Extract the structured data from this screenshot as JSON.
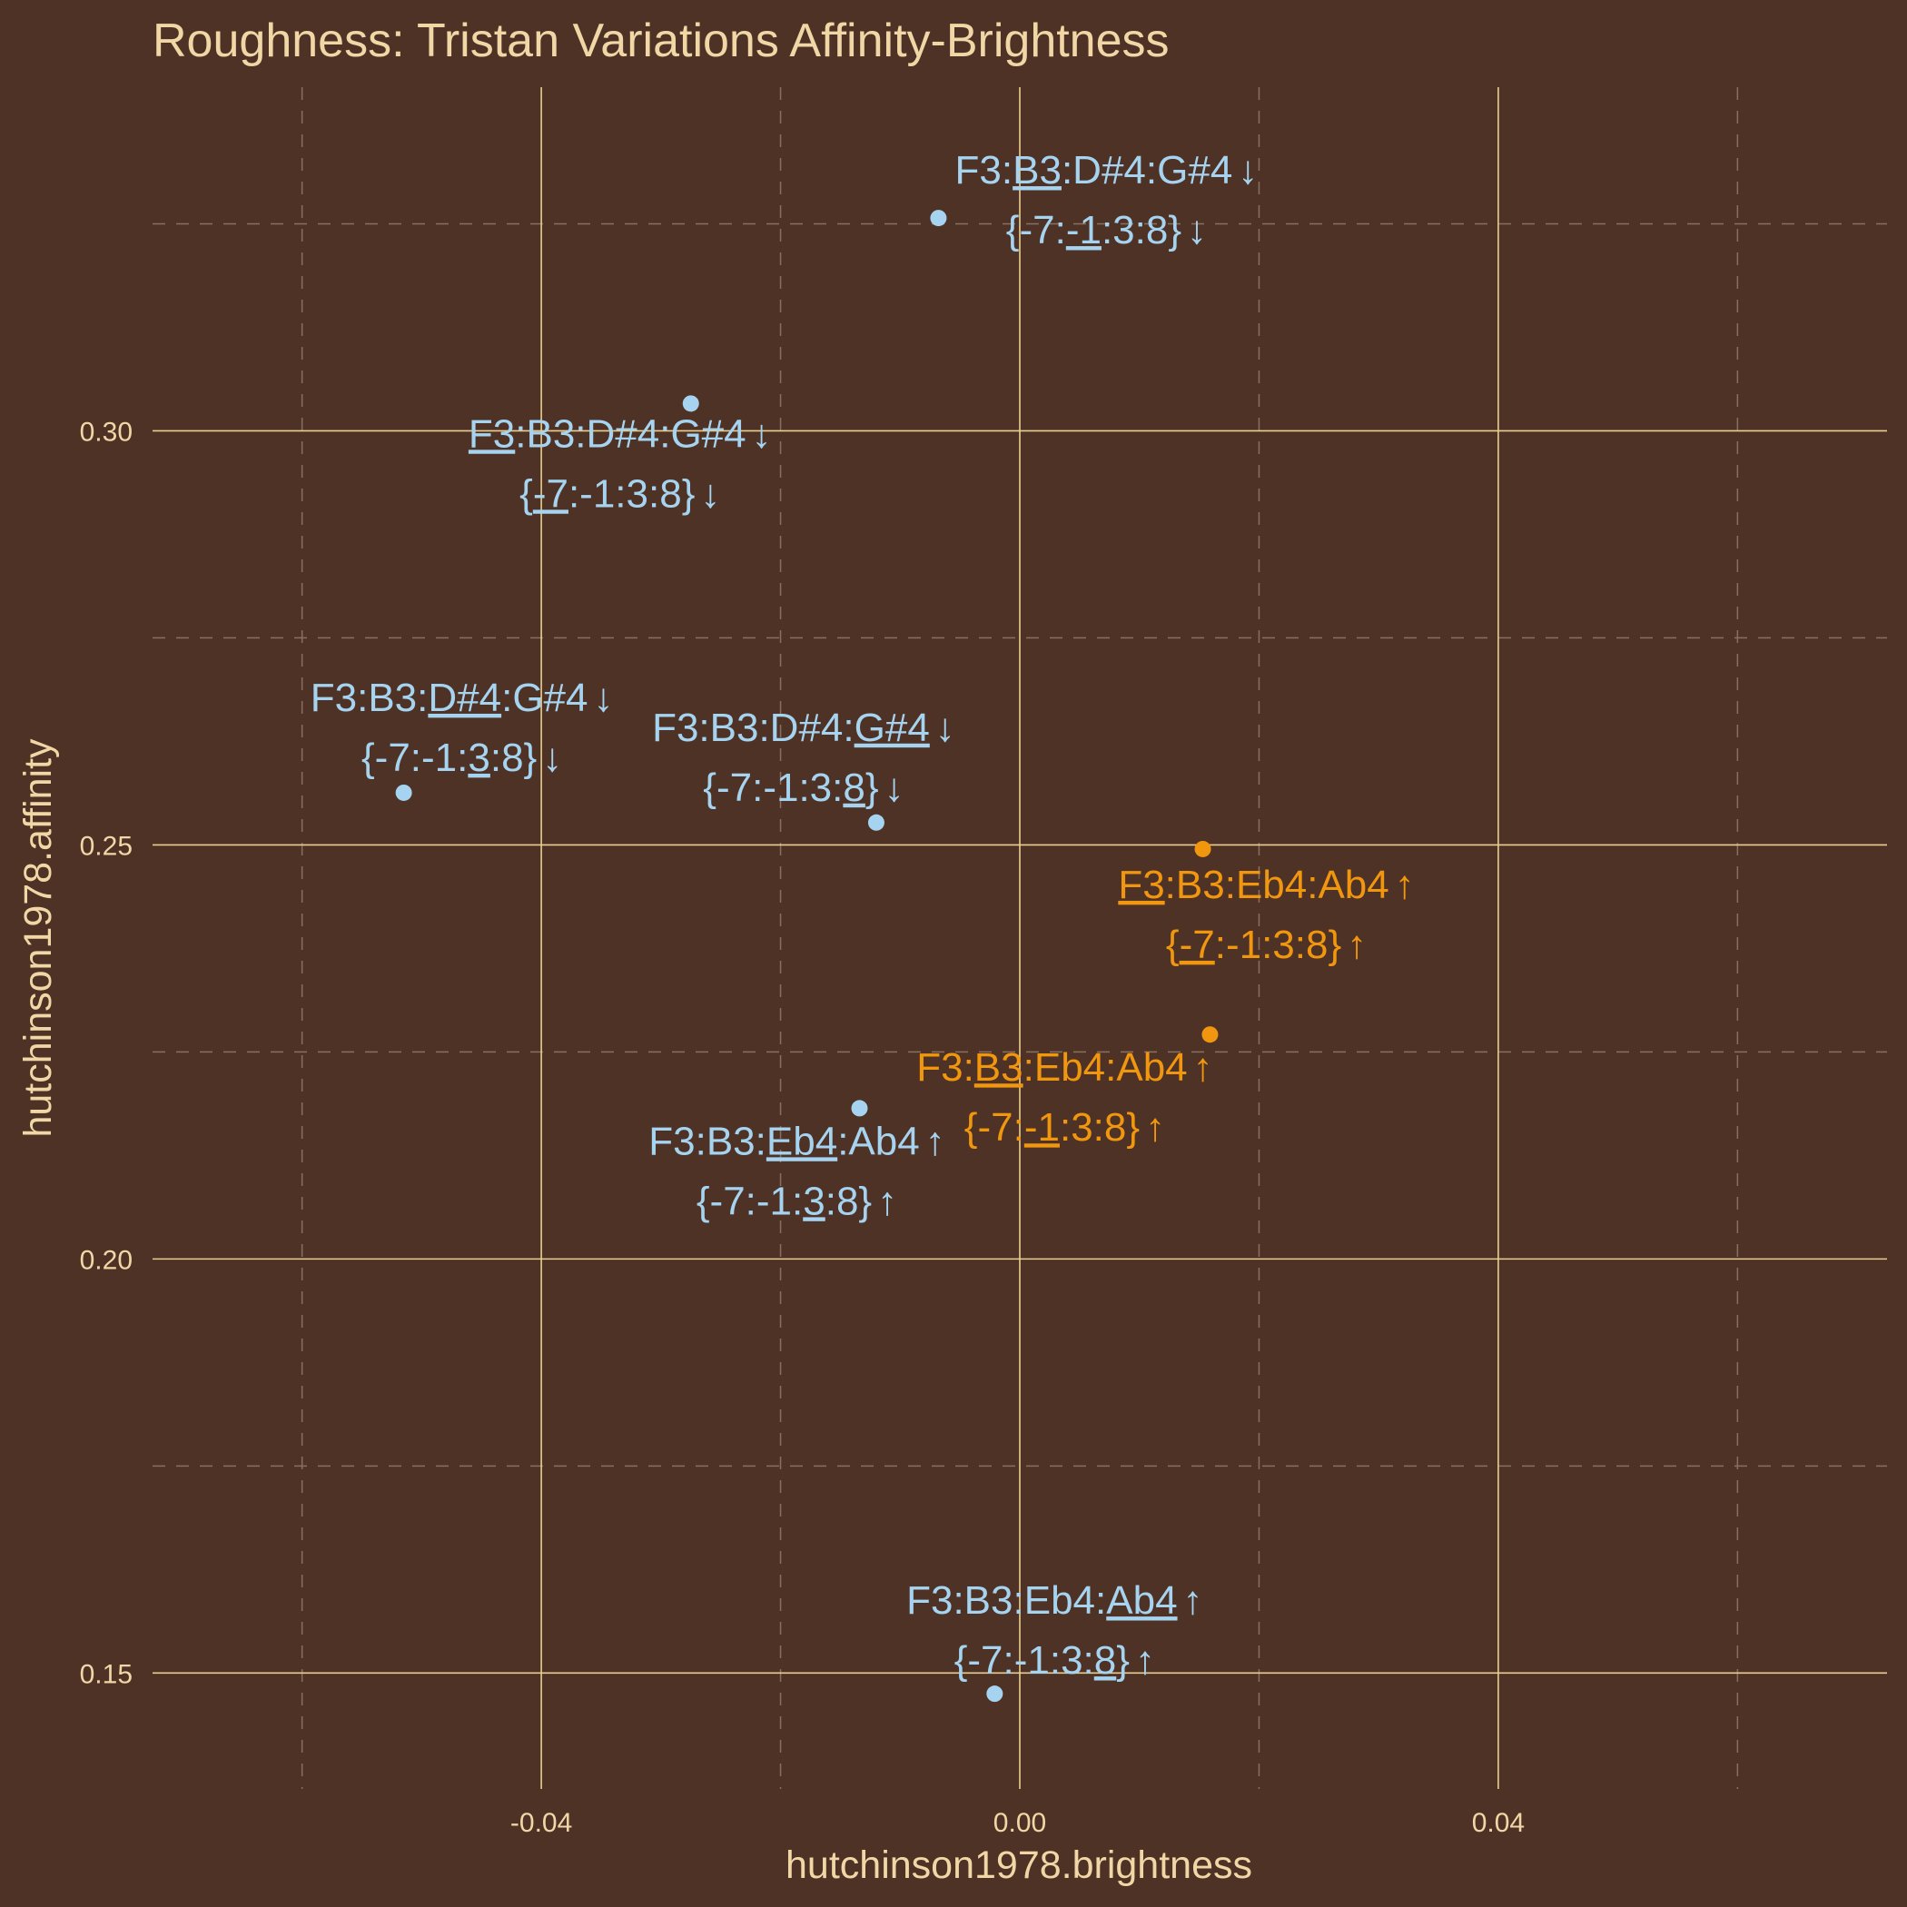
{
  "chart_data": {
    "type": "scatter",
    "title": "Roughness: Tristan Variations Affinity-Brightness",
    "xlabel": "hutchinson1978.brightness",
    "ylabel": "hutchinson1978.affinity",
    "xlim": [
      -0.0725,
      0.0725
    ],
    "ylim": [
      0.136,
      0.3415
    ],
    "x_major_ticks": [
      -0.04,
      0.0,
      0.04
    ],
    "x_tick_labels": [
      "-0.04",
      "0.00",
      "0.04"
    ],
    "x_minor_ticks": [
      -0.06,
      -0.02,
      0.02,
      0.06
    ],
    "y_major_ticks": [
      0.15,
      0.2,
      0.25,
      0.3
    ],
    "y_tick_labels": [
      "0.15",
      "0.20",
      "0.25",
      "0.30"
    ],
    "y_minor_ticks": [
      0.175,
      0.225,
      0.275,
      0.325
    ],
    "grid": true,
    "colors": {
      "background": "#4f3226",
      "down": "#a6d4f0",
      "up": "#f0960f",
      "text": "#f1d7a6"
    },
    "points": [
      {
        "x": -0.0068,
        "y": 0.3257,
        "color": "down",
        "label1": [
          [
            "F3:",
            false
          ],
          [
            "B3",
            true
          ],
          [
            ":D#4:G#4",
            false
          ]
        ],
        "arrow": "↓",
        "label2": [
          [
            "{-7:",
            false
          ],
          [
            "-1",
            true
          ],
          [
            ":3:8}",
            false
          ]
        ]
      },
      {
        "x": -0.0275,
        "y": 0.3033,
        "color": "down",
        "label1": [
          [
            "F3",
            true
          ],
          [
            ":B3:D#4:G#4",
            false
          ]
        ],
        "arrow": "↓",
        "label2": [
          [
            "{",
            false
          ],
          [
            "-7",
            true
          ],
          [
            ":-1:3:8}",
            false
          ]
        ]
      },
      {
        "x": -0.0515,
        "y": 0.2563,
        "color": "down",
        "label1": [
          [
            "F3:B3:",
            false
          ],
          [
            "D#4",
            true
          ],
          [
            ":G#4",
            false
          ]
        ],
        "arrow": "↓",
        "label2": [
          [
            "{-7:-1:",
            false
          ],
          [
            "3",
            true
          ],
          [
            ":8}",
            false
          ]
        ]
      },
      {
        "x": -0.012,
        "y": 0.2527,
        "color": "down",
        "label1": [
          [
            "F3:B3:D#4:",
            false
          ],
          [
            "G#4",
            true
          ]
        ],
        "arrow": "↓",
        "label2": [
          [
            "{-7:-1:3:",
            false
          ],
          [
            "8",
            true
          ],
          [
            "}",
            false
          ]
        ]
      },
      {
        "x": 0.0153,
        "y": 0.2495,
        "color": "up",
        "label1": [
          [
            "F3",
            true
          ],
          [
            ":B3:Eb4:Ab4",
            false
          ]
        ],
        "arrow": "↑",
        "label2": [
          [
            "{",
            false
          ],
          [
            "-7",
            true
          ],
          [
            ":-1:3:8}",
            false
          ]
        ]
      },
      {
        "x": 0.0159,
        "y": 0.2271,
        "color": "up",
        "label1": [
          [
            "F3:",
            false
          ],
          [
            "B3",
            true
          ],
          [
            ":Eb4:Ab4",
            false
          ]
        ],
        "arrow": "↑",
        "label2": [
          [
            "{-7:",
            false
          ],
          [
            "-1",
            true
          ],
          [
            ":3:8}",
            false
          ]
        ]
      },
      {
        "x": -0.0134,
        "y": 0.2182,
        "color": "down",
        "label1": [
          [
            "F3:B3:",
            false
          ],
          [
            "Eb4",
            true
          ],
          [
            ":Ab4",
            false
          ]
        ],
        "arrow": "↑",
        "label2": [
          [
            "{-7:-1:",
            false
          ],
          [
            "3",
            true
          ],
          [
            ":8}",
            false
          ]
        ]
      },
      {
        "x": -0.0021,
        "y": 0.1475,
        "color": "down",
        "label1": [
          [
            "F3:B3:Eb4:",
            false
          ],
          [
            "Ab4",
            true
          ]
        ],
        "arrow": "↑",
        "label2": [
          [
            "{-7:-1:3:",
            false
          ],
          [
            "8",
            true
          ],
          [
            "}",
            false
          ]
        ]
      }
    ]
  }
}
